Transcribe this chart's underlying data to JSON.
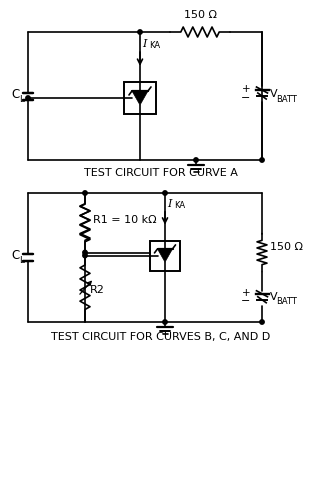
{
  "bg_color": "#ffffff",
  "line_color": "#000000",
  "title1": "TEST CIRCUIT FOR CURVE A",
  "title2": "TEST CIRCUIT FOR CURVES B, C, AND D",
  "label_150ohm_top": "150 Ω",
  "label_IKA_I": "I",
  "label_IKA_sub": "KA",
  "label_CL": "C",
  "label_CL_sub": "L",
  "label_VBATT": "V",
  "label_VBATT_sub": "BATT",
  "label_R1": "R1 = 10 kΩ",
  "label_R2": "R2",
  "label_150ohm_right": "150 Ω",
  "plus": "+",
  "minus": "−",
  "font_size_label": 7.5,
  "font_size_title": 7.5
}
